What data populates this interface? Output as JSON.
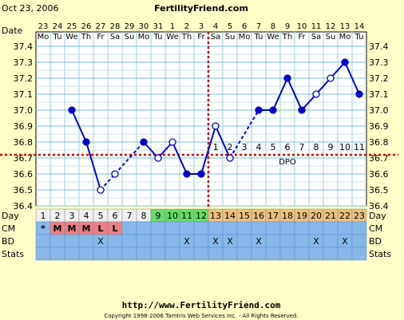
{
  "header": {
    "date": "Oct 23, 2006",
    "site": "FertilityFriend.com"
  },
  "footer": {
    "url": "http://www.FertilityFriend.com",
    "copyright": "Copyright 1998-2006 Tamtris Web Services Inc. - All Rights Reserved."
  },
  "chart_data": {
    "type": "line",
    "date_row_label": "Date",
    "dates": [
      "23",
      "24",
      "25",
      "26",
      "27",
      "28",
      "29",
      "30",
      "31",
      "1",
      "2",
      "3",
      "4",
      "5",
      "6",
      "7",
      "8",
      "9",
      "10",
      "11",
      "12",
      "13",
      "14"
    ],
    "weekdays": [
      "Mo",
      "Tu",
      "We",
      "Th",
      "Fr",
      "Sa",
      "Su",
      "Mo",
      "Tu",
      "We",
      "Th",
      "Fr",
      "Sa",
      "Su",
      "Mo",
      "Tu",
      "We",
      "Th",
      "Fr",
      "Sa",
      "Su",
      "Mo",
      "Tu"
    ],
    "day_row_label": "Day",
    "days": [
      "1",
      "2",
      "3",
      "4",
      "5",
      "6",
      "7",
      "8",
      "9",
      "10",
      "11",
      "12",
      "13",
      "14",
      "15",
      "16",
      "17",
      "18",
      "19",
      "20",
      "21",
      "22",
      "23"
    ],
    "y_ticks": [
      "37.4",
      "37.3",
      "37.2",
      "37.1",
      "37.0",
      "36.9",
      "36.8",
      "36.7",
      "36.6",
      "36.5",
      "36.4"
    ],
    "ylim": [
      36.4,
      37.4
    ],
    "temperatures": [
      null,
      null,
      37.0,
      36.8,
      36.5,
      36.6,
      null,
      36.8,
      36.7,
      36.8,
      36.6,
      36.6,
      36.9,
      36.7,
      null,
      37.0,
      37.0,
      37.2,
      37.0,
      37.1,
      37.2,
      37.3,
      37.1
    ],
    "open_points": [
      4,
      5,
      8,
      9,
      12,
      13,
      19,
      20
    ],
    "dashed_after": [
      4,
      13
    ],
    "coverline": 36.72,
    "ovulation_index": 11,
    "dpo_labels": [
      "1",
      "2",
      "3",
      "4",
      "5",
      "6",
      "7",
      "8",
      "9",
      "10",
      "11"
    ],
    "dpo_text": "DPO",
    "phase_colors": {
      "pre": "#f0f0f0",
      "fertile": "#66dd66",
      "post": "#f0c080"
    },
    "fertile_indices": [
      8,
      9,
      10,
      11
    ],
    "cm_label": "CM",
    "cm": [
      "*",
      "M",
      "M",
      "M",
      "L",
      "L",
      "",
      "",
      "",
      "",
      "",
      "",
      "",
      "",
      "",
      "",
      "",
      "",
      "",
      "",
      "",
      "",
      ""
    ],
    "bd_label": "BD",
    "bd": [
      "",
      "",
      "",
      "",
      "X",
      "",
      "",
      "",
      "",
      "",
      "X",
      "",
      "X",
      "X",
      "",
      "X",
      "",
      "",
      "",
      "X",
      "",
      "X",
      ""
    ],
    "stats_label": "Stats"
  }
}
